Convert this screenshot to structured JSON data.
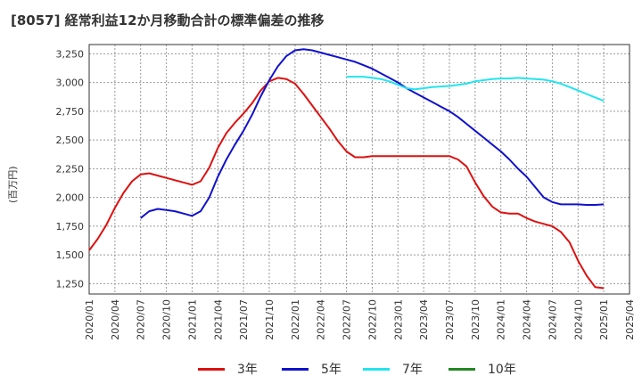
{
  "title": "[8057]  経常利益12か月移動合計の標準偏差の推移",
  "y_unit_label": "(百万円)",
  "legend": [
    {
      "label": "3年",
      "color": "#dd1111"
    },
    {
      "label": "5年",
      "color": "#1111cc"
    },
    {
      "label": "7年",
      "color": "#22e5ee"
    },
    {
      "label": "10年",
      "color": "#228822"
    }
  ],
  "chart_data": {
    "type": "line",
    "title": "[8057]  経常利益12か月移動合計の標準偏差の推移",
    "ylabel": "(百万円)",
    "ylim": [
      1160,
      3330
    ],
    "y_ticks": [
      1250,
      1500,
      1750,
      2000,
      2250,
      2500,
      2750,
      3000,
      3250
    ],
    "y_tick_labels": [
      "1,250",
      "1,500",
      "1,750",
      "2,000",
      "2,250",
      "2,500",
      "2,750",
      "3,000",
      "3,250"
    ],
    "x_tick_labels": [
      "2020/01",
      "2020/04",
      "2020/07",
      "2020/10",
      "2021/01",
      "2021/04",
      "2021/07",
      "2021/10",
      "2022/01",
      "2022/04",
      "2022/07",
      "2022/10",
      "2023/01",
      "2023/04",
      "2023/07",
      "2023/10",
      "2024/01",
      "2024/04",
      "2024/07",
      "2024/10",
      "2025/01",
      "2025/04"
    ],
    "x_range": [
      "2020/01",
      "2025/04"
    ],
    "grid": true,
    "series": [
      {
        "name": "3年",
        "color": "#dd1111",
        "x": [
          "2020/01",
          "2020/02",
          "2020/03",
          "2020/04",
          "2020/05",
          "2020/06",
          "2020/07",
          "2020/08",
          "2020/09",
          "2020/10",
          "2020/11",
          "2020/12",
          "2021/01",
          "2021/02",
          "2021/03",
          "2021/04",
          "2021/05",
          "2021/06",
          "2021/07",
          "2021/08",
          "2021/09",
          "2021/10",
          "2021/11",
          "2021/12",
          "2022/01",
          "2022/02",
          "2022/03",
          "2022/04",
          "2022/05",
          "2022/06",
          "2022/07",
          "2022/08",
          "2022/09",
          "2022/10",
          "2022/11",
          "2022/12",
          "2023/01",
          "2023/02",
          "2023/03",
          "2023/04",
          "2023/05",
          "2023/06",
          "2023/07",
          "2023/08",
          "2023/09",
          "2023/10",
          "2023/11",
          "2023/12",
          "2024/01",
          "2024/02",
          "2024/03",
          "2024/04",
          "2024/05",
          "2024/06",
          "2024/07",
          "2024/08",
          "2024/09",
          "2024/10",
          "2024/11",
          "2024/12",
          "2025/01"
        ],
        "values": [
          1540,
          1640,
          1760,
          1910,
          2040,
          2140,
          2200,
          2210,
          2190,
          2170,
          2150,
          2130,
          2110,
          2140,
          2260,
          2430,
          2560,
          2650,
          2730,
          2820,
          2930,
          3010,
          3040,
          3030,
          2990,
          2900,
          2800,
          2700,
          2600,
          2490,
          2400,
          2350,
          2350,
          2360,
          2360,
          2360,
          2360,
          2360,
          2360,
          2360,
          2360,
          2360,
          2360,
          2330,
          2270,
          2130,
          2010,
          1920,
          1870,
          1860,
          1860,
          1820,
          1790,
          1770,
          1750,
          1700,
          1610,
          1450,
          1320,
          1220,
          1210
        ]
      },
      {
        "name": "5年",
        "color": "#1111cc",
        "x": [
          "2020/07",
          "2020/08",
          "2020/09",
          "2020/10",
          "2020/11",
          "2020/12",
          "2021/01",
          "2021/02",
          "2021/03",
          "2021/04",
          "2021/05",
          "2021/06",
          "2021/07",
          "2021/08",
          "2021/09",
          "2021/10",
          "2021/11",
          "2021/12",
          "2022/01",
          "2022/02",
          "2022/03",
          "2022/04",
          "2022/05",
          "2022/06",
          "2022/07",
          "2022/08",
          "2022/09",
          "2022/10",
          "2022/11",
          "2022/12",
          "2023/01",
          "2023/02",
          "2023/03",
          "2023/04",
          "2023/05",
          "2023/06",
          "2023/07",
          "2023/08",
          "2023/09",
          "2023/10",
          "2023/11",
          "2023/12",
          "2024/01",
          "2024/02",
          "2024/03",
          "2024/04",
          "2024/05",
          "2024/06",
          "2024/07",
          "2024/08",
          "2024/09",
          "2024/10",
          "2024/11",
          "2024/12",
          "2025/01"
        ],
        "values": [
          1820,
          1880,
          1900,
          1890,
          1880,
          1860,
          1840,
          1880,
          2000,
          2180,
          2330,
          2460,
          2580,
          2720,
          2880,
          3020,
          3140,
          3230,
          3280,
          3290,
          3280,
          3260,
          3240,
          3220,
          3200,
          3180,
          3150,
          3120,
          3080,
          3040,
          3000,
          2950,
          2910,
          2870,
          2830,
          2790,
          2750,
          2700,
          2640,
          2580,
          2520,
          2460,
          2400,
          2330,
          2250,
          2180,
          2090,
          2000,
          1960,
          1940,
          1940,
          1940,
          1935,
          1935,
          1940
        ]
      },
      {
        "name": "7年",
        "color": "#22e5ee",
        "x": [
          "2022/07",
          "2022/08",
          "2022/09",
          "2022/10",
          "2022/11",
          "2022/12",
          "2023/01",
          "2023/02",
          "2023/03",
          "2023/04",
          "2023/05",
          "2023/06",
          "2023/07",
          "2023/08",
          "2023/09",
          "2023/10",
          "2023/11",
          "2023/12",
          "2024/01",
          "2024/02",
          "2024/03",
          "2024/04",
          "2024/05",
          "2024/06",
          "2024/07",
          "2024/08",
          "2024/09",
          "2024/10",
          "2024/11",
          "2024/12",
          "2025/01"
        ],
        "values": [
          3050,
          3050,
          3050,
          3040,
          3030,
          3010,
          2980,
          2950,
          2940,
          2950,
          2960,
          2965,
          2970,
          2980,
          2990,
          3010,
          3020,
          3030,
          3035,
          3035,
          3040,
          3035,
          3030,
          3025,
          3010,
          2990,
          2960,
          2930,
          2900,
          2870,
          2840
        ]
      },
      {
        "name": "10年",
        "color": "#228822",
        "x": [],
        "values": []
      }
    ]
  }
}
